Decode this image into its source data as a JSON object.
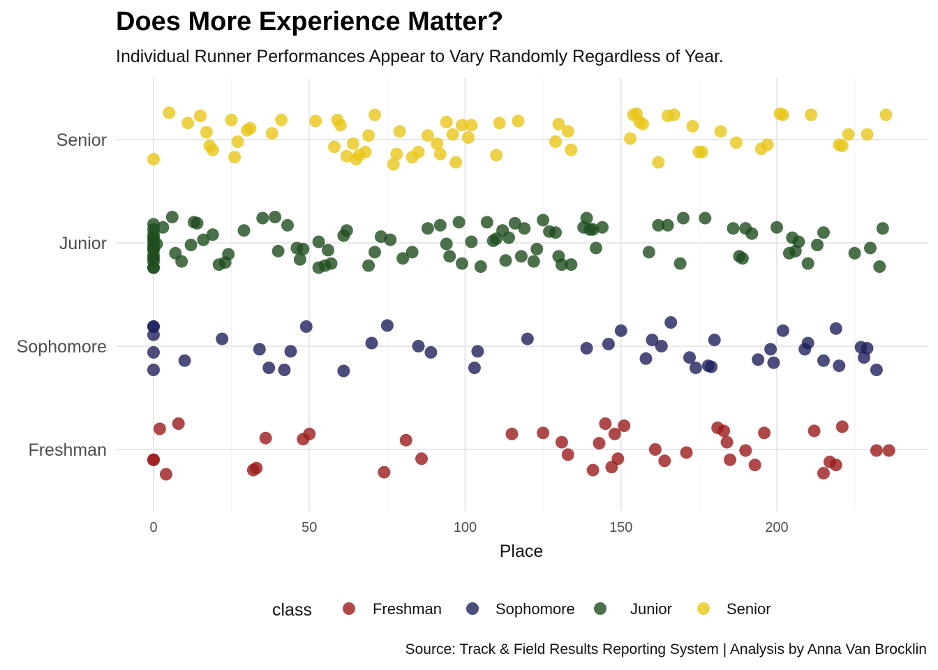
{
  "title": "Does More Experience Matter?",
  "subtitle": "Individual Runner Performances Appear to Vary Randomly Regardless of Year.",
  "caption": "Source: Track & Field Results Reporting System | Analysis by Anna Van Brocklin",
  "chart_data": {
    "type": "scatter",
    "title": "Does More Experience Matter?",
    "subtitle": "Individual Runner Performances Appear to Vary Randomly Regardless of Year.",
    "xlabel": "Place",
    "ylabel": "",
    "xlim": [
      -10,
      248
    ],
    "x_ticks": [
      0,
      50,
      100,
      150,
      200
    ],
    "categories": [
      "Freshman",
      "Sophomore",
      "Junior",
      "Senior"
    ],
    "grid": true,
    "legend": {
      "title": "class",
      "position": "bottom"
    },
    "point_opacity": 0.8,
    "series": [
      {
        "name": "Freshman",
        "color": "#9b1c1c",
        "points": [
          [
            0,
            -0.1
          ],
          [
            0,
            -0.1
          ],
          [
            2,
            0.2
          ],
          [
            4,
            -0.24
          ],
          [
            8,
            0.25
          ],
          [
            32,
            -0.2
          ],
          [
            33,
            -0.18
          ],
          [
            36,
            0.11
          ],
          [
            48,
            0.1
          ],
          [
            50,
            0.15
          ],
          [
            74,
            -0.22
          ],
          [
            81,
            0.09
          ],
          [
            86,
            -0.09
          ],
          [
            115,
            0.15
          ],
          [
            125,
            0.16
          ],
          [
            131,
            0.07
          ],
          [
            133,
            -0.05
          ],
          [
            141,
            -0.2
          ],
          [
            143,
            0.06
          ],
          [
            145,
            0.25
          ],
          [
            147,
            -0.17
          ],
          [
            148,
            0.15
          ],
          [
            149,
            -0.09
          ],
          [
            151,
            0.23
          ],
          [
            161,
            0.0
          ],
          [
            164,
            -0.11
          ],
          [
            171,
            -0.03
          ],
          [
            181,
            0.21
          ],
          [
            183,
            0.18
          ],
          [
            184,
            0.07
          ],
          [
            185,
            -0.1
          ],
          [
            190,
            -0.01
          ],
          [
            193,
            -0.15
          ],
          [
            196,
            0.16
          ],
          [
            212,
            0.18
          ],
          [
            215,
            -0.23
          ],
          [
            217,
            -0.12
          ],
          [
            219,
            -0.15
          ],
          [
            221,
            0.22
          ],
          [
            232,
            -0.01
          ],
          [
            236,
            -0.01
          ]
        ]
      },
      {
        "name": "Sophomore",
        "color": "#1f1f5c",
        "points": [
          [
            0,
            0.19
          ],
          [
            0,
            0.19
          ],
          [
            0,
            0.11
          ],
          [
            0,
            -0.06
          ],
          [
            0,
            -0.23
          ],
          [
            10,
            -0.14
          ],
          [
            22,
            0.07
          ],
          [
            34,
            -0.03
          ],
          [
            37,
            -0.21
          ],
          [
            42,
            -0.23
          ],
          [
            44,
            -0.05
          ],
          [
            49,
            0.19
          ],
          [
            61,
            -0.24
          ],
          [
            70,
            0.03
          ],
          [
            75,
            0.2
          ],
          [
            85,
            0.0
          ],
          [
            89,
            -0.06
          ],
          [
            104,
            -0.05
          ],
          [
            103,
            -0.21
          ],
          [
            120,
            0.07
          ],
          [
            139,
            -0.02
          ],
          [
            146,
            0.02
          ],
          [
            150,
            0.15
          ],
          [
            158,
            -0.12
          ],
          [
            160,
            0.06
          ],
          [
            163,
            0.0
          ],
          [
            166,
            0.23
          ],
          [
            172,
            -0.11
          ],
          [
            174,
            -0.21
          ],
          [
            178,
            -0.19
          ],
          [
            179,
            -0.2
          ],
          [
            180,
            0.06
          ],
          [
            194,
            -0.13
          ],
          [
            198,
            -0.03
          ],
          [
            199,
            -0.16
          ],
          [
            202,
            0.15
          ],
          [
            209,
            -0.03
          ],
          [
            210,
            0.03
          ],
          [
            215,
            -0.14
          ],
          [
            219,
            0.17
          ],
          [
            220,
            -0.19
          ],
          [
            227,
            -0.01
          ],
          [
            228,
            -0.11
          ],
          [
            229,
            -0.02
          ],
          [
            232,
            -0.23
          ]
        ]
      },
      {
        "name": "Junior",
        "color": "#1e4d1e",
        "points": [
          [
            0,
            0.18
          ],
          [
            0,
            0.13
          ],
          [
            0,
            0.08
          ],
          [
            0,
            0.05
          ],
          [
            0,
            0.02
          ],
          [
            0,
            -0.02
          ],
          [
            0,
            -0.05
          ],
          [
            0,
            -0.07
          ],
          [
            0,
            -0.12
          ],
          [
            0,
            -0.15
          ],
          [
            0,
            -0.18
          ],
          [
            0,
            -0.24
          ],
          [
            0,
            -0.24
          ],
          [
            1,
            -0.01
          ],
          [
            3,
            0.15
          ],
          [
            6,
            0.25
          ],
          [
            7,
            -0.1
          ],
          [
            9,
            -0.18
          ],
          [
            12,
            -0.02
          ],
          [
            13,
            0.2
          ],
          [
            14,
            0.19
          ],
          [
            16,
            0.03
          ],
          [
            19,
            0.08
          ],
          [
            21,
            -0.21
          ],
          [
            23,
            -0.19
          ],
          [
            24,
            -0.11
          ],
          [
            29,
            0.12
          ],
          [
            35,
            0.24
          ],
          [
            39,
            0.25
          ],
          [
            40,
            -0.08
          ],
          [
            43,
            0.17
          ],
          [
            46,
            -0.05
          ],
          [
            47,
            -0.16
          ],
          [
            48,
            -0.06
          ],
          [
            53,
            -0.24
          ],
          [
            53,
            0.01
          ],
          [
            55,
            -0.22
          ],
          [
            56,
            -0.07
          ],
          [
            57,
            -0.2
          ],
          [
            61,
            0.07
          ],
          [
            62,
            0.12
          ],
          [
            69,
            -0.22
          ],
          [
            71,
            -0.09
          ],
          [
            73,
            0.06
          ],
          [
            76,
            0.03
          ],
          [
            80,
            -0.15
          ],
          [
            83,
            -0.09
          ],
          [
            88,
            0.14
          ],
          [
            92,
            0.17
          ],
          [
            94,
            -0.01
          ],
          [
            95,
            -0.13
          ],
          [
            98,
            0.2
          ],
          [
            99,
            -0.2
          ],
          [
            102,
            0.01
          ],
          [
            105,
            -0.23
          ],
          [
            107,
            0.2
          ],
          [
            109,
            0.02
          ],
          [
            110,
            0.04
          ],
          [
            112,
            0.12
          ],
          [
            113,
            -0.17
          ],
          [
            114,
            0.05
          ],
          [
            116,
            0.19
          ],
          [
            118,
            -0.13
          ],
          [
            119,
            0.14
          ],
          [
            122,
            -0.18
          ],
          [
            123,
            -0.06
          ],
          [
            125,
            0.22
          ],
          [
            127,
            0.11
          ],
          [
            129,
            0.1
          ],
          [
            130,
            -0.13
          ],
          [
            131,
            -0.21
          ],
          [
            134,
            -0.21
          ],
          [
            138,
            0.15
          ],
          [
            139,
            0.24
          ],
          [
            140,
            0.13
          ],
          [
            141,
            0.13
          ],
          [
            142,
            -0.05
          ],
          [
            144,
            0.15
          ],
          [
            159,
            -0.09
          ],
          [
            162,
            0.17
          ],
          [
            165,
            0.17
          ],
          [
            169,
            -0.2
          ],
          [
            170,
            0.24
          ],
          [
            177,
            0.24
          ],
          [
            186,
            0.14
          ],
          [
            188,
            -0.13
          ],
          [
            189,
            -0.15
          ],
          [
            190,
            0.14
          ],
          [
            192,
            0.09
          ],
          [
            200,
            0.15
          ],
          [
            204,
            -0.1
          ],
          [
            205,
            0.05
          ],
          [
            206,
            -0.08
          ],
          [
            207,
            0.01
          ],
          [
            210,
            -0.2
          ],
          [
            213,
            -0.02
          ],
          [
            215,
            0.1
          ],
          [
            225,
            -0.1
          ],
          [
            230,
            -0.05
          ],
          [
            233,
            -0.23
          ],
          [
            234,
            0.14
          ]
        ]
      },
      {
        "name": "Senior",
        "color": "#e8c619",
        "points": [
          [
            0,
            -0.19
          ],
          [
            5,
            0.26
          ],
          [
            11,
            0.16
          ],
          [
            15,
            0.23
          ],
          [
            17,
            0.07
          ],
          [
            18,
            -0.06
          ],
          [
            19,
            -0.1
          ],
          [
            25,
            0.19
          ],
          [
            26,
            -0.17
          ],
          [
            27,
            -0.02
          ],
          [
            30,
            0.09
          ],
          [
            31,
            0.11
          ],
          [
            38,
            0.06
          ],
          [
            41,
            0.19
          ],
          [
            52,
            0.18
          ],
          [
            58,
            -0.07
          ],
          [
            59,
            0.19
          ],
          [
            60,
            0.14
          ],
          [
            62,
            -0.16
          ],
          [
            64,
            -0.04
          ],
          [
            65,
            -0.19
          ],
          [
            66,
            -0.15
          ],
          [
            68,
            -0.12
          ],
          [
            69,
            0.04
          ],
          [
            71,
            0.24
          ],
          [
            77,
            -0.24
          ],
          [
            78,
            -0.14
          ],
          [
            79,
            0.08
          ],
          [
            83,
            -0.17
          ],
          [
            85,
            -0.12
          ],
          [
            88,
            0.04
          ],
          [
            91,
            -0.04
          ],
          [
            92,
            -0.14
          ],
          [
            94,
            0.17
          ],
          [
            96,
            0.05
          ],
          [
            97,
            -0.22
          ],
          [
            99,
            0.14
          ],
          [
            101,
            0.02
          ],
          [
            102,
            0.14
          ],
          [
            110,
            -0.15
          ],
          [
            111,
            0.16
          ],
          [
            117,
            0.18
          ],
          [
            129,
            -0.02
          ],
          [
            130,
            0.15
          ],
          [
            133,
            0.08
          ],
          [
            134,
            -0.1
          ],
          [
            153,
            0.01
          ],
          [
            154,
            0.24
          ],
          [
            155,
            0.25
          ],
          [
            156,
            0.17
          ],
          [
            157,
            0.15
          ],
          [
            162,
            -0.22
          ],
          [
            165,
            0.23
          ],
          [
            167,
            0.24
          ],
          [
            173,
            0.13
          ],
          [
            175,
            -0.12
          ],
          [
            176,
            -0.12
          ],
          [
            182,
            0.08
          ],
          [
            187,
            -0.03
          ],
          [
            195,
            -0.09
          ],
          [
            197,
            -0.05
          ],
          [
            201,
            0.25
          ],
          [
            202,
            0.24
          ],
          [
            211,
            0.24
          ],
          [
            220,
            -0.05
          ],
          [
            221,
            -0.06
          ],
          [
            223,
            0.05
          ],
          [
            229,
            0.05
          ],
          [
            235,
            0.24
          ]
        ]
      }
    ]
  }
}
